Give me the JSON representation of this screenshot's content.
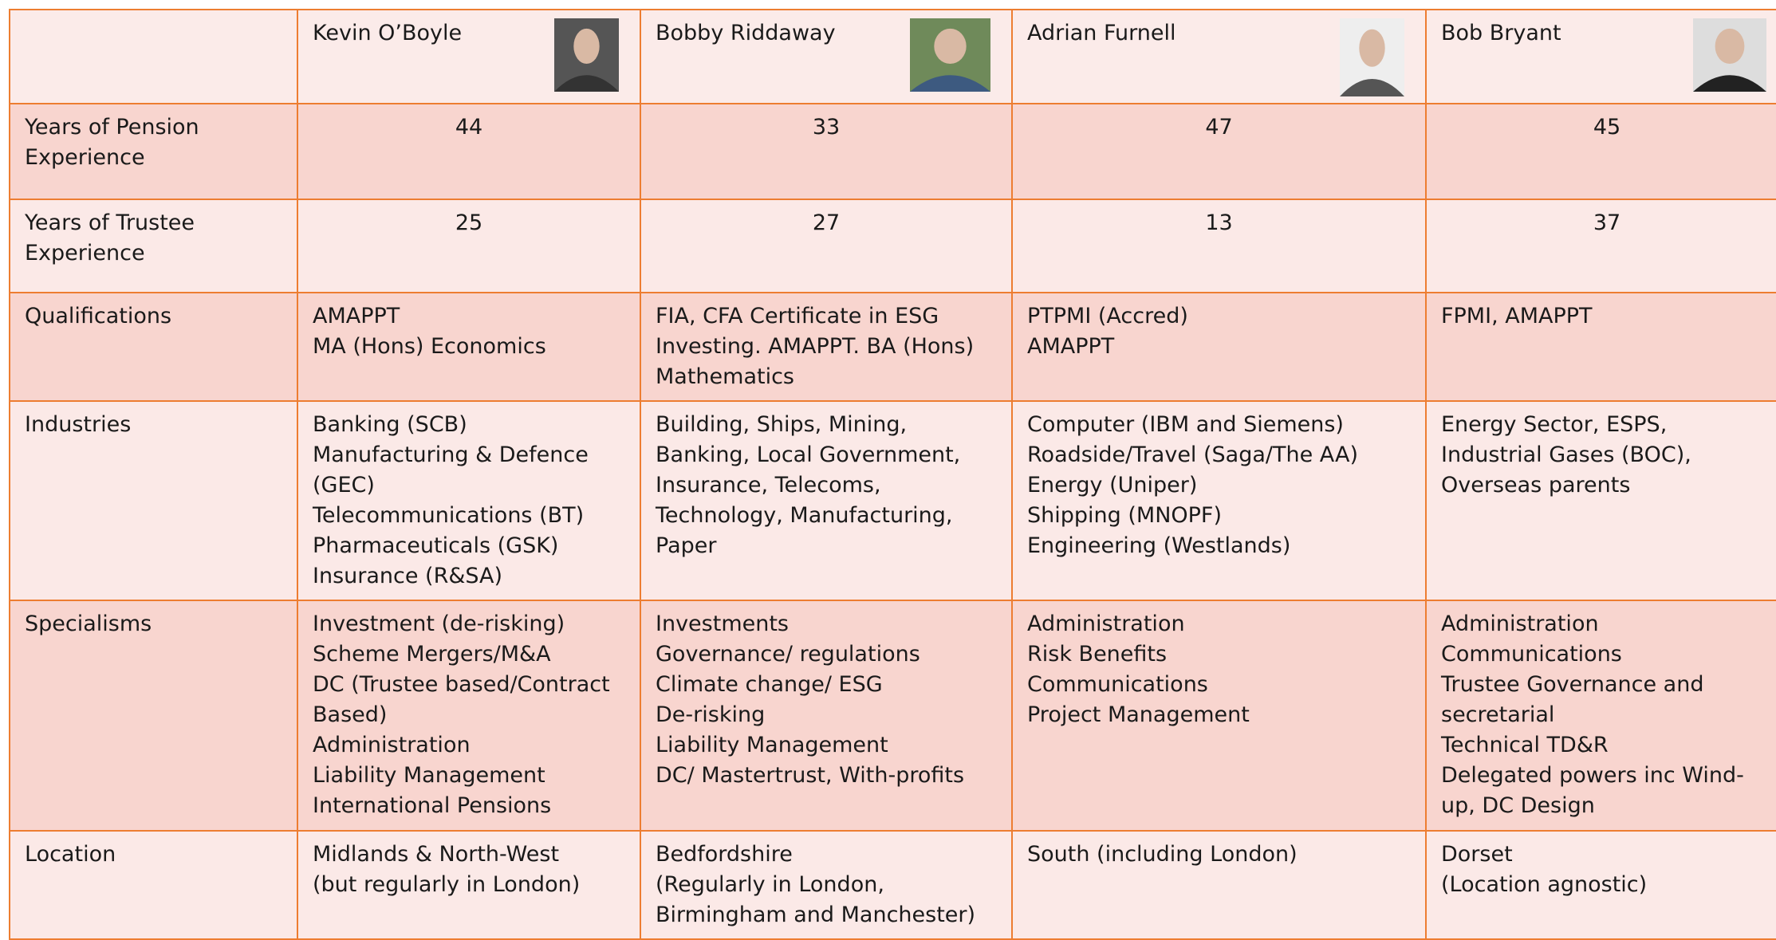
{
  "members": [
    {
      "name": "Kevin O’Boyle"
    },
    {
      "name": "Bobby Riddaway"
    },
    {
      "name": "Adrian Furnell"
    },
    {
      "name": "Bob Bryant"
    }
  ],
  "rows": [
    {
      "label": "Years of Pension Experience",
      "values": [
        44,
        33,
        47,
        45
      ]
    },
    {
      "label": "Years of Trustee Experience",
      "values": [
        25,
        27,
        13,
        37
      ]
    },
    {
      "label": "Qualifications",
      "values": [
        [
          "AMAPPT",
          "MA (Hons) Economics"
        ],
        [
          "FIA, CFA Certificate in ESG Investing. AMAPPT. BA (Hons) Mathematics"
        ],
        [
          "PTPMI (Accred)",
          "AMAPPT"
        ],
        [
          "FPMI, AMAPPT"
        ]
      ]
    },
    {
      "label": "Industries",
      "values": [
        [
          "Banking (SCB)",
          "Manufacturing & Defence (GEC)",
          "Telecommunications (BT)",
          "Pharmaceuticals (GSK)",
          "Insurance (R&SA)"
        ],
        [
          "Building, Ships, Mining, Banking, Local Government, Insurance, Telecoms, Technology, Manufacturing, Paper"
        ],
        [
          "Computer (IBM and Siemens)",
          "Roadside/Travel (Saga/The AA)",
          "Energy (Uniper)",
          "Shipping (MNOPF)",
          "Engineering (Westlands)"
        ],
        [
          "Energy Sector, ESPS, Industrial Gases (BOC), Overseas parents"
        ]
      ]
    },
    {
      "label": "Specialisms",
      "values": [
        [
          "Investment (de-risking)",
          "Scheme Mergers/M&A",
          "DC (Trustee based/Contract Based)",
          "Administration",
          "Liability Management",
          "International Pensions"
        ],
        [
          "Investments",
          "Governance/ regulations",
          "Climate change/ ESG",
          "De-risking",
          "Liability Management",
          "DC/ Mastertrust, With-profits"
        ],
        [
          "Administration",
          "Risk Benefits",
          "Communications",
          "Project Management"
        ],
        [
          "Administration",
          "Communications",
          "Trustee Governance and secretarial",
          "Technical TD&R",
          "Delegated powers inc Wind-up, DC Design"
        ]
      ]
    },
    {
      "label": "Location",
      "values": [
        [
          "Midlands & North-West",
          "(but regularly in London)"
        ],
        [
          "Bedfordshire",
          "(Regularly in London, Birmingham and Manchester)"
        ],
        [
          "South (including London)"
        ],
        [
          "Dorset",
          "(Location agnostic)"
        ]
      ]
    }
  ]
}
